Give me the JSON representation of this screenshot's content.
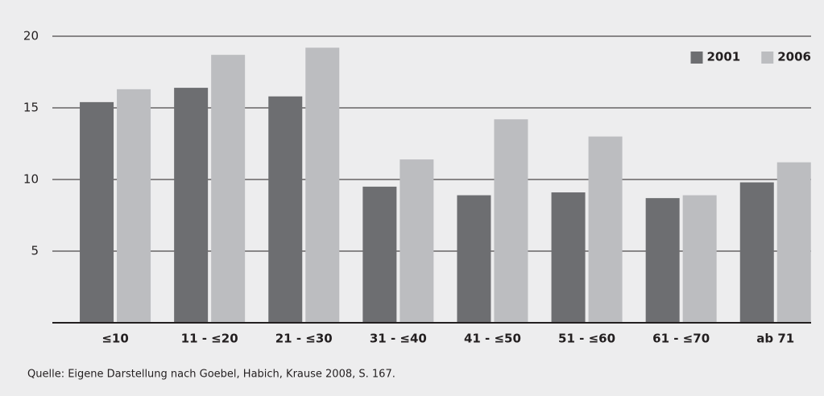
{
  "chart_data": {
    "type": "bar",
    "categories": [
      "≤10",
      "11 - ≤20",
      "21 - ≤30",
      "31 - ≤40",
      "41 - ≤50",
      "51 - ≤60",
      "61 - ≤70",
      "ab 71"
    ],
    "series": [
      {
        "name": "2001",
        "color": "#6d6e71",
        "values": [
          15.4,
          16.4,
          15.8,
          9.5,
          8.9,
          9.1,
          8.7,
          9.8
        ]
      },
      {
        "name": "2006",
        "color": "#bcbdc0",
        "values": [
          16.3,
          18.7,
          19.2,
          11.4,
          14.2,
          13.0,
          8.9,
          11.2
        ]
      }
    ],
    "ylim": [
      0,
      20
    ],
    "yticks": [
      5,
      10,
      15,
      20
    ],
    "grid": true,
    "legend": "upper right",
    "source": "Quelle: Eigene Darstellung nach Goebel, Habich, Krause 2008, S. 167."
  }
}
